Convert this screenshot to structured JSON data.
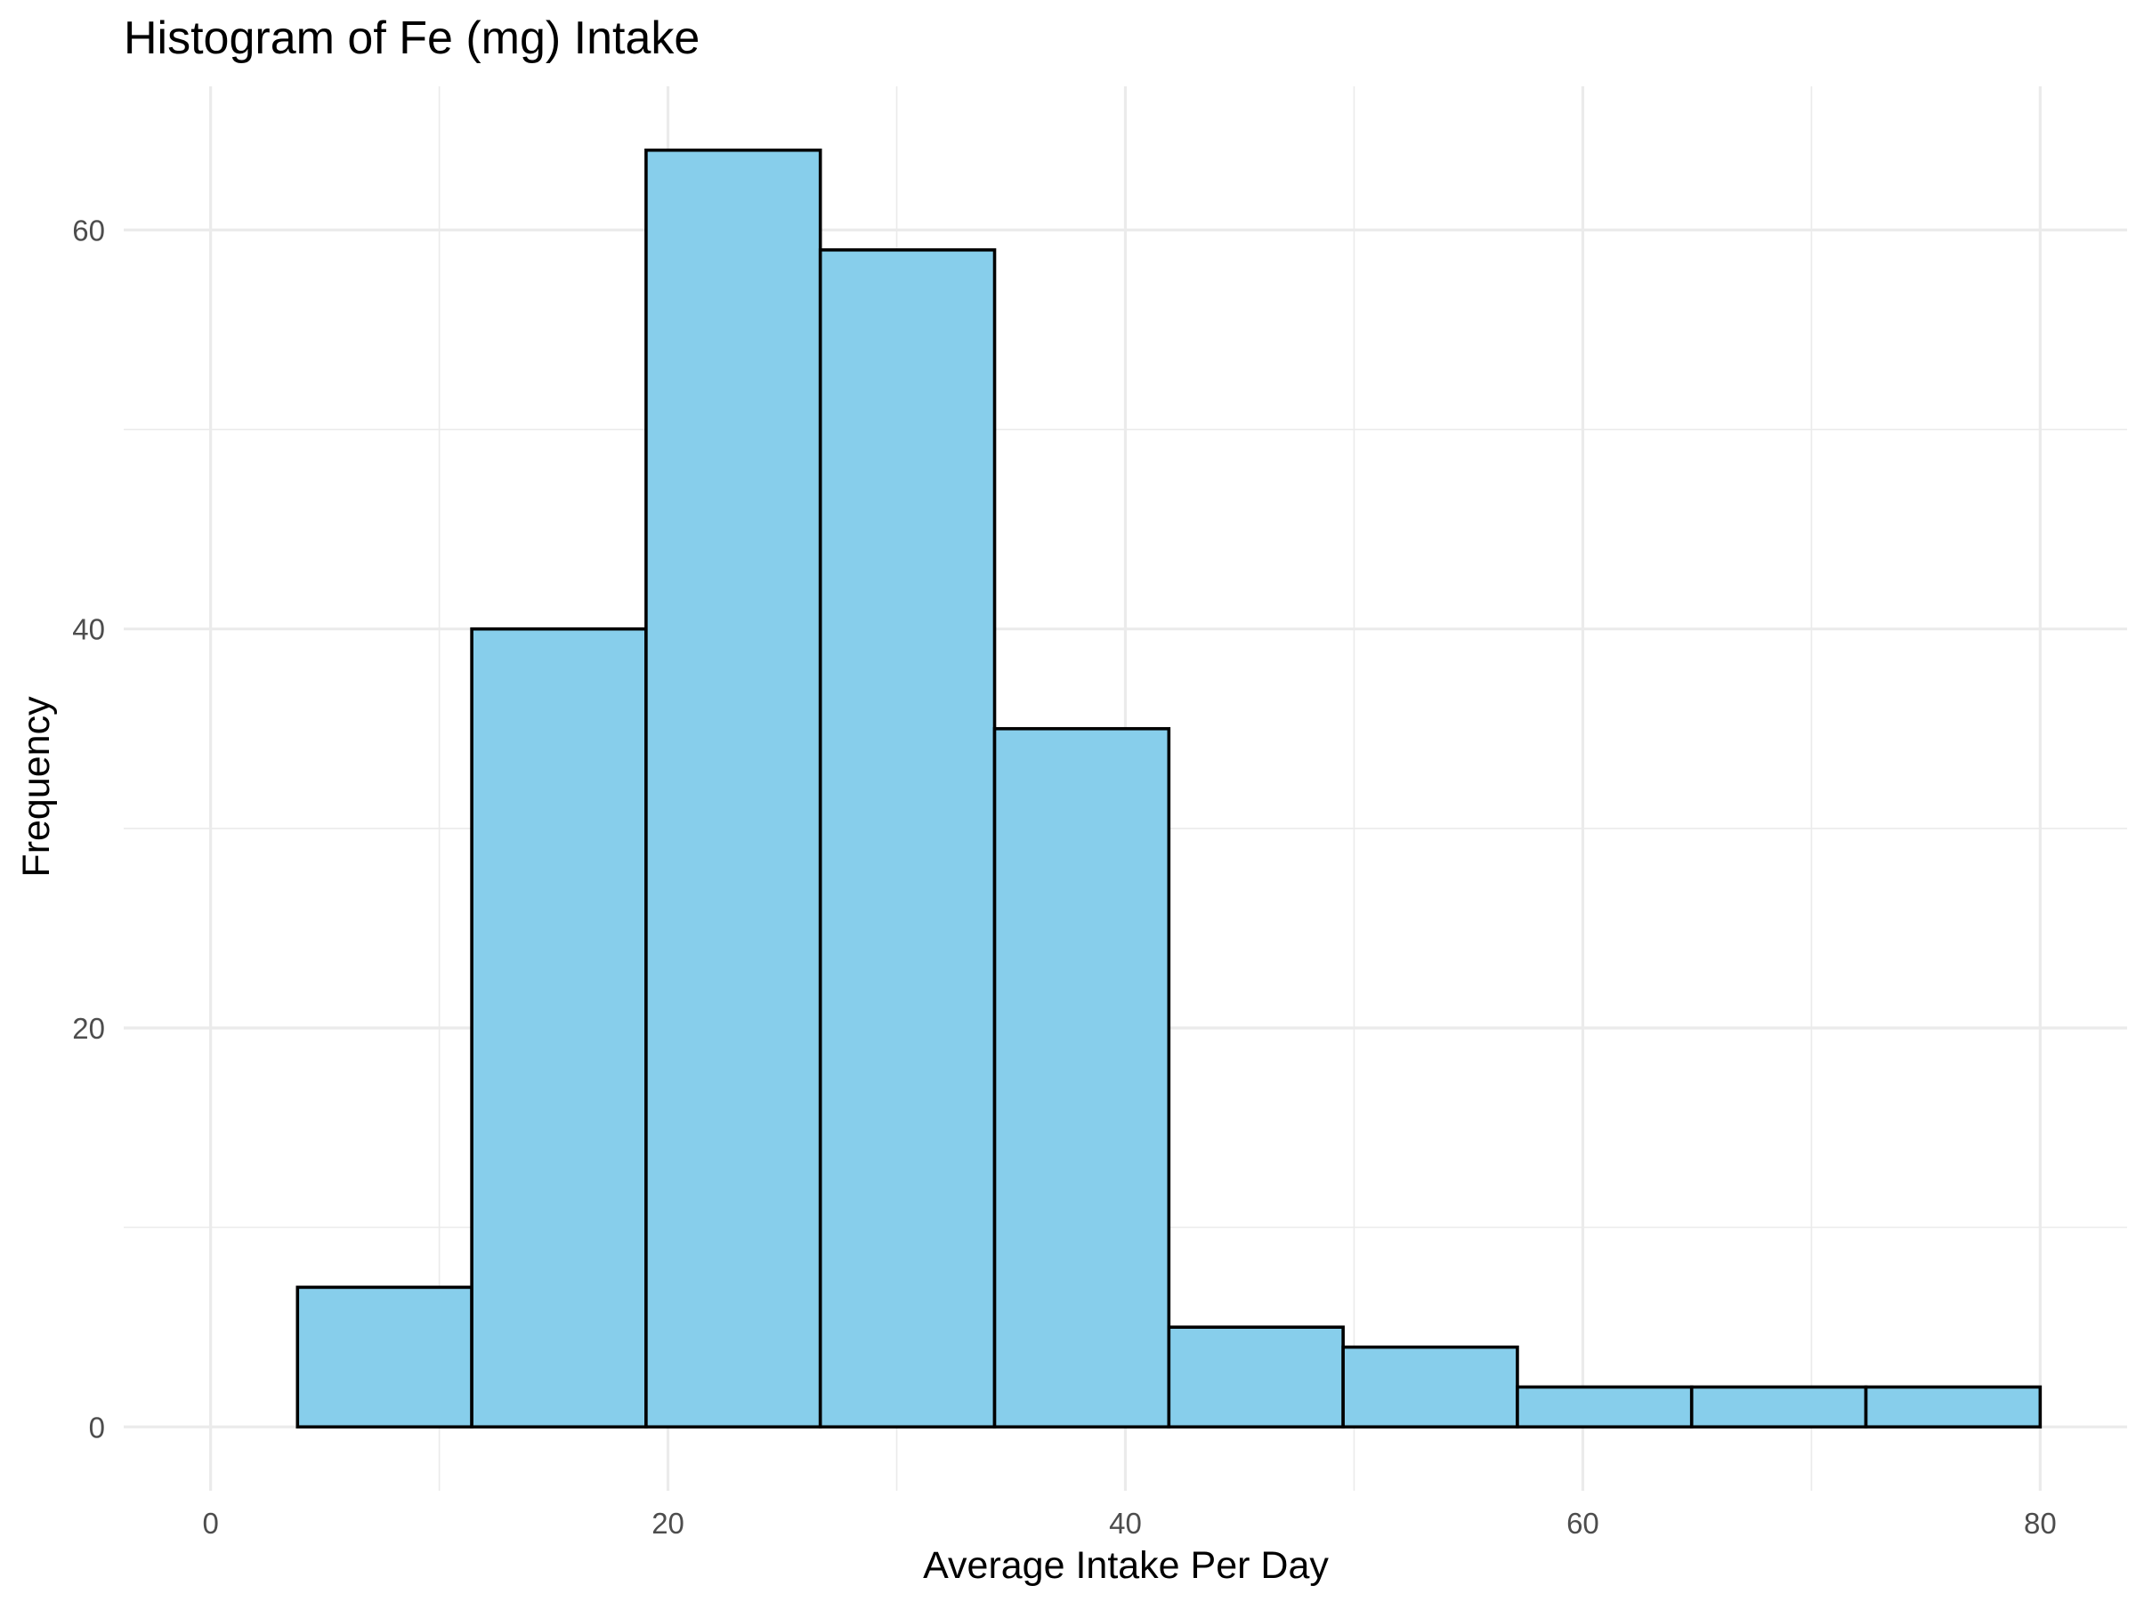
{
  "chart_data": {
    "type": "bar",
    "subtype": "histogram",
    "title": "Histogram of Fe (mg) Intake",
    "xlabel": "Average Intake Per Day",
    "ylabel": "Frequency",
    "bins": [
      {
        "x0": 3.8,
        "x1": 11.42,
        "count": 7
      },
      {
        "x0": 11.42,
        "x1": 19.04,
        "count": 40
      },
      {
        "x0": 19.04,
        "x1": 26.66,
        "count": 64
      },
      {
        "x0": 26.66,
        "x1": 34.28,
        "count": 59
      },
      {
        "x0": 34.28,
        "x1": 41.9,
        "count": 35
      },
      {
        "x0": 41.9,
        "x1": 49.52,
        "count": 5
      },
      {
        "x0": 49.52,
        "x1": 57.14,
        "count": 4
      },
      {
        "x0": 57.14,
        "x1": 64.76,
        "count": 2
      },
      {
        "x0": 64.76,
        "x1": 72.38,
        "count": 2
      },
      {
        "x0": 72.38,
        "x1": 80.0,
        "count": 2
      }
    ],
    "xlim": [
      -3.8,
      83.8
    ],
    "ylim": [
      -3.2,
      67.2
    ],
    "x_ticks": [
      0,
      20,
      40,
      60,
      80
    ],
    "x_tick_labels": [
      "0",
      "20",
      "40",
      "60",
      "80"
    ],
    "y_ticks": [
      0,
      20,
      40,
      60
    ],
    "y_tick_labels": [
      "0",
      "20",
      "40",
      "60"
    ],
    "x_minor_ticks": [
      10,
      30,
      50,
      70
    ],
    "y_minor_ticks": [
      10,
      30,
      50
    ],
    "grid": true,
    "legend": "none",
    "bar_fill": "#87ceeb",
    "bar_outline": "#000000"
  }
}
